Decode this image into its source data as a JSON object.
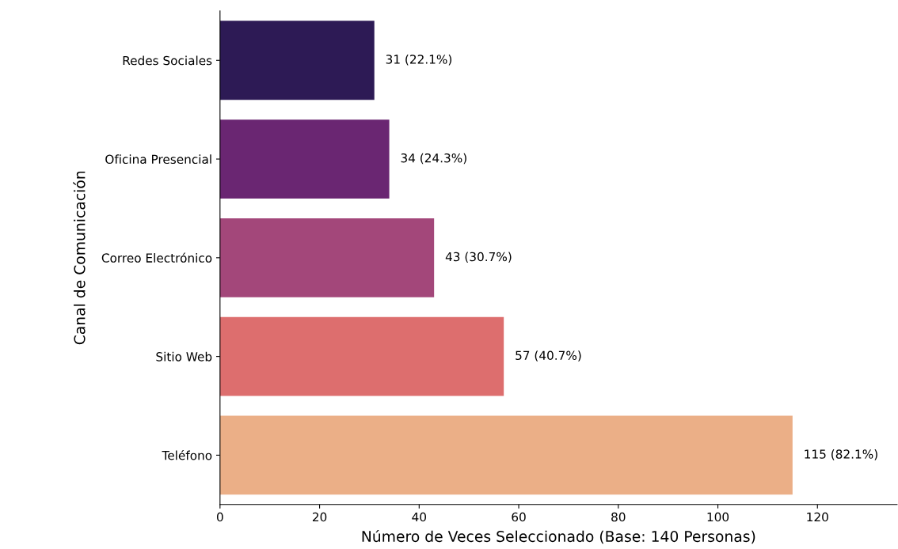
{
  "chart_data": {
    "type": "bar",
    "orientation": "horizontal",
    "xlabel": "Número de Veces Seleccionado (Base: 140 Personas)",
    "ylabel": "Canal de Comunicación",
    "categories": [
      "Redes Sociales",
      "Oficina Presencial",
      "Correo Electrónico",
      "Sitio Web",
      "Teléfono"
    ],
    "values": [
      31,
      34,
      43,
      57,
      115
    ],
    "colors": [
      "#2d1a55",
      "#6a2672",
      "#a3477a",
      "#dd6e6e",
      "#ebaf87"
    ],
    "value_labels": [
      "31 (22.1%)",
      "34 (24.3%)",
      "43 (30.7%)",
      "57 (40.7%)",
      "115 (82.1%)"
    ],
    "xlim": [
      0,
      136
    ],
    "xticks": [
      0,
      20,
      40,
      60,
      80,
      100,
      120
    ],
    "grid": false,
    "legend": false
  }
}
